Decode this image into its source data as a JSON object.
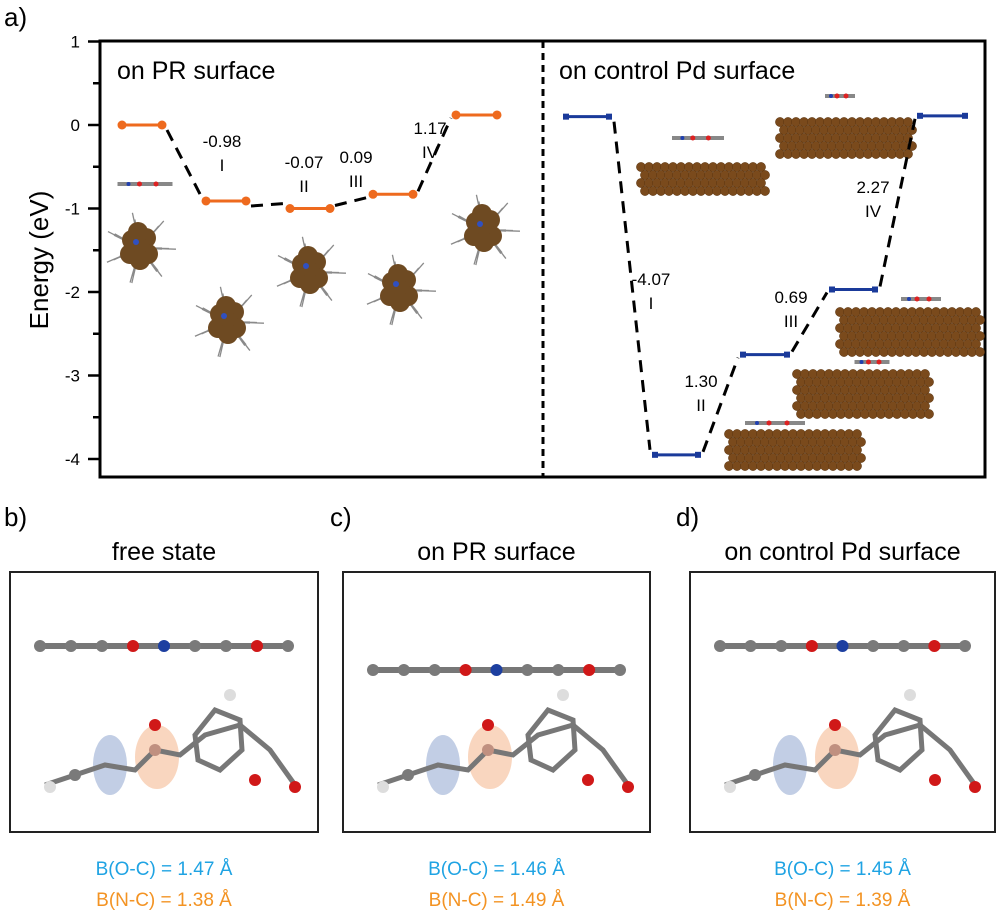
{
  "panel_a": {
    "label": "a)",
    "chart_data": {
      "type": "energy-level diagram",
      "ylabel": "Energy (eV)",
      "ylim": [
        -4.2,
        1
      ],
      "yticks": [
        "1",
        "0",
        "-1",
        "-2",
        "-3",
        "-4"
      ],
      "grid": false,
      "panels": [
        {
          "title": "on PR surface",
          "color": "#ee6a1e",
          "levels": [
            0.0,
            -0.91,
            -1.0,
            -0.83,
            0.12
          ],
          "steps": [
            {
              "value": "-0.98",
              "roman": "I"
            },
            {
              "value": "-0.07",
              "roman": "II"
            },
            {
              "value": "0.09",
              "roman": "III"
            },
            {
              "value": "1.17",
              "roman": "IV"
            }
          ]
        },
        {
          "title": "on control Pd surface",
          "color": "#1a3a9a",
          "levels": [
            0.1,
            -3.95,
            -2.75,
            -1.97,
            0.11
          ],
          "steps": [
            {
              "value": "-4.07",
              "roman": "I"
            },
            {
              "value": "1.30",
              "roman": "II"
            },
            {
              "value": "0.69",
              "roman": "III"
            },
            {
              "value": "2.27",
              "roman": "IV"
            }
          ]
        }
      ]
    }
  },
  "panels_bcd": [
    {
      "label": "b)",
      "title": "free state",
      "boc": "B(O-C) = 1.47 Å",
      "bnc": "B(N-C) = 1.38 Å"
    },
    {
      "label": "c)",
      "title": "on PR surface",
      "boc": "B(O-C) = 1.46 Å",
      "bnc": "B(N-C) = 1.49 Å"
    },
    {
      "label": "d)",
      "title": "on control Pd surface",
      "boc": "B(O-C) = 1.45 Å",
      "bnc": "B(N-C) = 1.39 Å"
    }
  ],
  "colors": {
    "boc": "#1fa3e3",
    "bnc": "#f39323",
    "pd_metal": "#7a4a1c"
  }
}
